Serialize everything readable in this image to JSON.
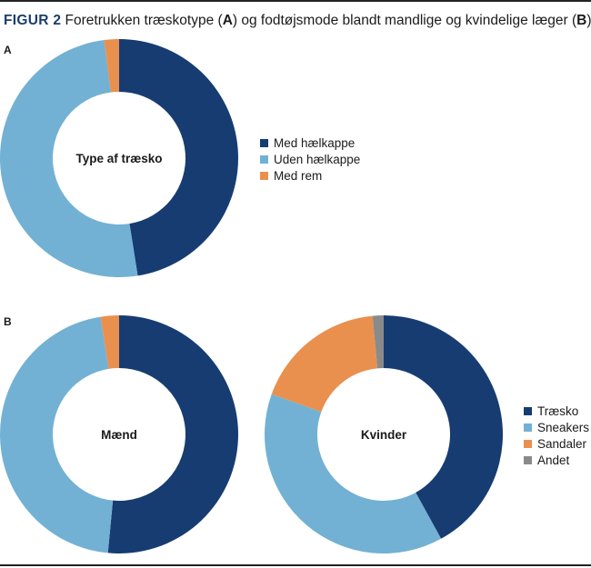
{
  "figure": {
    "label": "FIGUR 2",
    "text1": " Foretrukken træskotype (",
    "boldA": "A",
    "text2": ") og fodtøjsmode blandt mandlige og kvindelige læger (",
    "boldB": "B",
    "text3": ")."
  },
  "panels": {
    "a": "A",
    "b": "B"
  },
  "colors": {
    "dark_blue": "#173c72",
    "light_blue": "#72b1d3",
    "orange": "#e9904e",
    "gray": "#8a8a8a"
  },
  "legend_a": [
    {
      "label": "Med hælkappe",
      "color": "#173c72"
    },
    {
      "label": "Uden hælkappe",
      "color": "#72b1d3"
    },
    {
      "label": "Med rem",
      "color": "#e9904e"
    }
  ],
  "legend_b": [
    {
      "label": "Træsko",
      "color": "#173c72"
    },
    {
      "label": "Sneakers",
      "color": "#72b1d3"
    },
    {
      "label": "Sandaler",
      "color": "#e9904e"
    },
    {
      "label": "Andet",
      "color": "#8a8a8a"
    }
  ],
  "chart_data": [
    {
      "type": "pie",
      "center_label": "Type af træsko",
      "categories": [
        "Med hælkappe",
        "Uden hælkappe",
        "Med rem"
      ],
      "values": [
        47.5,
        50.5,
        2
      ],
      "colors": [
        "#173c72",
        "#72b1d3",
        "#e9904e"
      ]
    },
    {
      "type": "pie",
      "center_label": "Mænd",
      "categories": [
        "Træsko",
        "Sneakers",
        "Sandaler",
        "Andet"
      ],
      "values": [
        51.5,
        46,
        2.5,
        0
      ],
      "colors": [
        "#173c72",
        "#72b1d3",
        "#e9904e",
        "#8a8a8a"
      ]
    },
    {
      "type": "pie",
      "center_label": "Kvinder",
      "categories": [
        "Træsko",
        "Sneakers",
        "Sandaler",
        "Andet"
      ],
      "values": [
        42,
        38.5,
        18,
        1.5
      ],
      "colors": [
        "#173c72",
        "#72b1d3",
        "#e9904e",
        "#8a8a8a"
      ]
    }
  ]
}
